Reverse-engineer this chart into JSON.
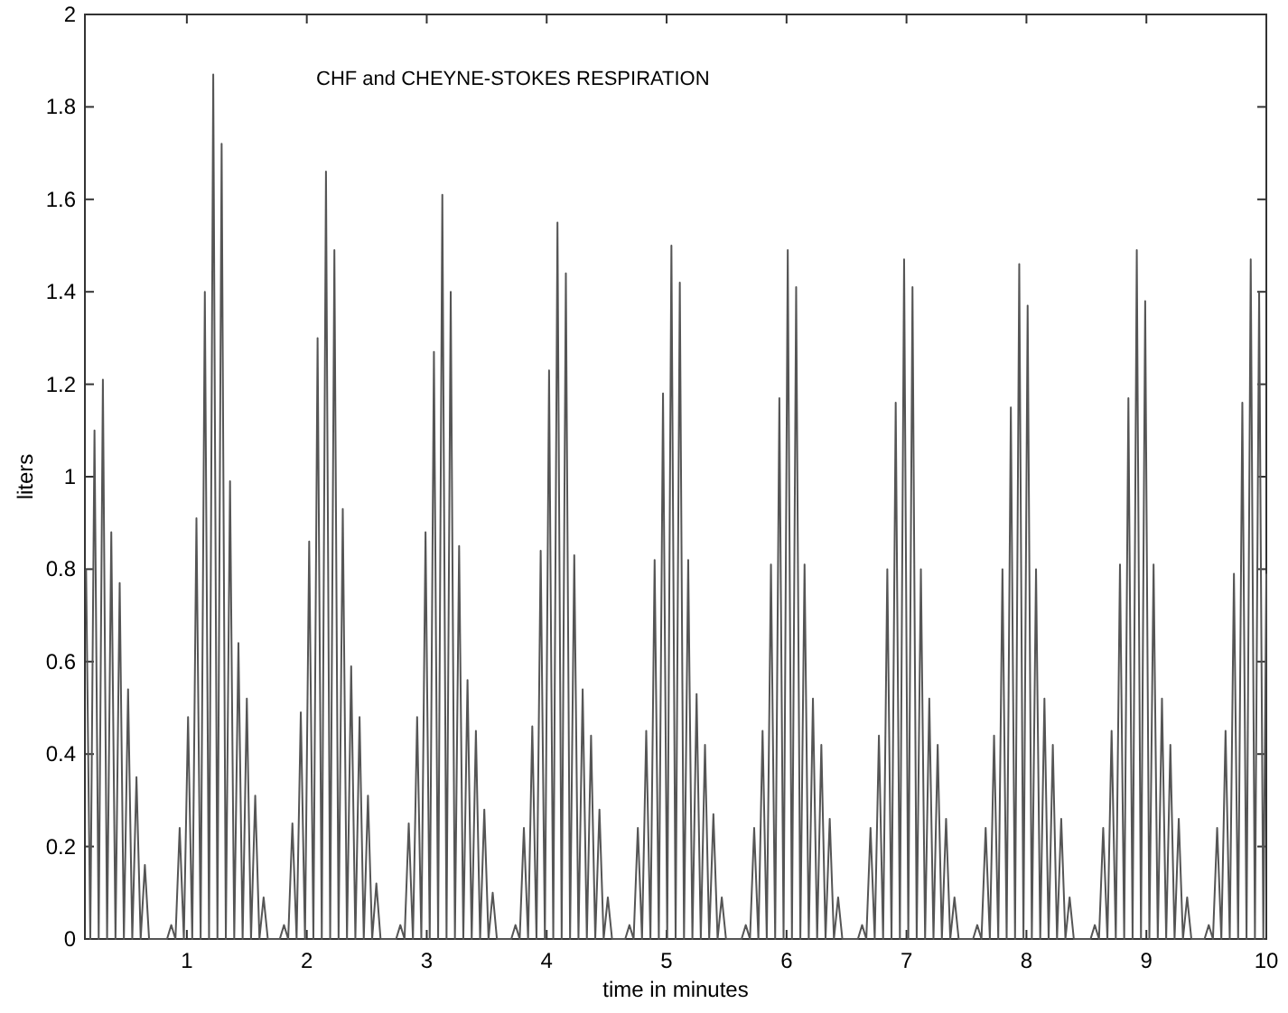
{
  "chart_data": {
    "type": "line",
    "title": "CHF and CHEYNE-STOKES RESPIRATION",
    "xlabel": "time in minutes",
    "ylabel": "liters",
    "xlim": [
      0.15,
      10
    ],
    "ylim": [
      0,
      2
    ],
    "xticks": [
      1,
      2,
      3,
      4,
      5,
      6,
      7,
      8,
      9,
      10
    ],
    "yticks": [
      0,
      0.2,
      0.4,
      0.6,
      0.8,
      1,
      1.2,
      1.4,
      1.6,
      1.8,
      2
    ],
    "grid": false,
    "line_style": "solid",
    "series": [
      {
        "color": "#555555",
        "x": [
          0.16,
          0.195,
          0.23,
          0.265,
          0.3,
          0.335,
          0.37,
          0.405,
          0.44,
          0.475,
          0.51,
          0.545,
          0.58,
          0.615,
          0.65,
          0.685,
          0.835,
          0.87,
          0.905,
          0.94,
          0.975,
          1.01,
          1.045,
          1.08,
          1.115,
          1.15,
          1.185,
          1.22,
          1.255,
          1.29,
          1.325,
          1.36,
          1.395,
          1.43,
          1.465,
          1.5,
          1.535,
          1.57,
          1.605,
          1.64,
          1.675,
          1.775,
          1.81,
          1.845,
          1.88,
          1.915,
          1.95,
          1.985,
          2.02,
          2.055,
          2.09,
          2.125,
          2.16,
          2.195,
          2.23,
          2.265,
          2.3,
          2.335,
          2.37,
          2.405,
          2.44,
          2.475,
          2.51,
          2.545,
          2.58,
          2.615,
          2.745,
          2.78,
          2.815,
          2.85,
          2.885,
          2.92,
          2.955,
          2.99,
          3.025,
          3.06,
          3.095,
          3.13,
          3.165,
          3.2,
          3.235,
          3.27,
          3.305,
          3.34,
          3.375,
          3.41,
          3.445,
          3.48,
          3.515,
          3.55,
          3.585,
          3.705,
          3.74,
          3.775,
          3.81,
          3.845,
          3.88,
          3.915,
          3.95,
          3.985,
          4.02,
          4.055,
          4.09,
          4.125,
          4.16,
          4.195,
          4.23,
          4.265,
          4.3,
          4.335,
          4.37,
          4.405,
          4.44,
          4.475,
          4.51,
          4.545,
          4.655,
          4.69,
          4.725,
          4.76,
          4.795,
          4.83,
          4.865,
          4.9,
          4.935,
          4.97,
          5.005,
          5.04,
          5.075,
          5.11,
          5.145,
          5.18,
          5.215,
          5.25,
          5.285,
          5.32,
          5.355,
          5.39,
          5.425,
          5.46,
          5.495,
          5.625,
          5.66,
          5.695,
          5.73,
          5.765,
          5.8,
          5.835,
          5.87,
          5.905,
          5.94,
          5.975,
          6.01,
          6.045,
          6.08,
          6.115,
          6.15,
          6.185,
          6.22,
          6.255,
          6.29,
          6.325,
          6.36,
          6.395,
          6.43,
          6.465,
          6.595,
          6.63,
          6.665,
          6.7,
          6.735,
          6.77,
          6.805,
          6.84,
          6.875,
          6.91,
          6.945,
          6.98,
          7.015,
          7.05,
          7.085,
          7.12,
          7.155,
          7.19,
          7.225,
          7.26,
          7.295,
          7.33,
          7.365,
          7.4,
          7.435,
          7.555,
          7.59,
          7.625,
          7.66,
          7.695,
          7.73,
          7.765,
          7.8,
          7.835,
          7.87,
          7.905,
          7.94,
          7.975,
          8.01,
          8.045,
          8.08,
          8.115,
          8.15,
          8.185,
          8.22,
          8.255,
          8.29,
          8.325,
          8.36,
          8.395,
          8.535,
          8.57,
          8.605,
          8.64,
          8.675,
          8.71,
          8.745,
          8.78,
          8.815,
          8.85,
          8.885,
          8.92,
          8.955,
          8.99,
          9.025,
          9.06,
          9.095,
          9.13,
          9.165,
          9.2,
          9.235,
          9.27,
          9.305,
          9.34,
          9.375,
          9.485,
          9.52,
          9.555,
          9.59,
          9.625,
          9.66,
          9.695,
          9.73,
          9.765,
          9.8,
          9.835,
          9.87,
          9.905,
          9.94,
          9.975,
          10
        ],
        "values": [
          0.8,
          0,
          1.1,
          0,
          1.21,
          0,
          0.88,
          0,
          0.77,
          0,
          0.54,
          0,
          0.35,
          0,
          0.16,
          0,
          0,
          0.03,
          0,
          0.24,
          0,
          0.48,
          0,
          0.91,
          0,
          1.4,
          0,
          1.87,
          0,
          1.72,
          0,
          0.99,
          0,
          0.64,
          0,
          0.52,
          0,
          0.31,
          0,
          0.09,
          0,
          0,
          0.03,
          0,
          0.25,
          0,
          0.49,
          0,
          0.86,
          0,
          1.3,
          0,
          1.66,
          0,
          1.49,
          0,
          0.93,
          0,
          0.59,
          0,
          0.48,
          0,
          0.31,
          0,
          0.12,
          0,
          0,
          0.03,
          0,
          0.25,
          0,
          0.48,
          0,
          0.88,
          0,
          1.27,
          0,
          1.61,
          0,
          1.4,
          0,
          0.85,
          0,
          0.56,
          0,
          0.45,
          0,
          0.28,
          0,
          0.1,
          0,
          0,
          0.03,
          0,
          0.24,
          0,
          0.46,
          0,
          0.84,
          0,
          1.23,
          0,
          1.55,
          0,
          1.44,
          0,
          0.83,
          0,
          0.54,
          0,
          0.44,
          0,
          0.28,
          0,
          0.09,
          0,
          0,
          0.03,
          0,
          0.24,
          0,
          0.45,
          0,
          0.82,
          0,
          1.18,
          0,
          1.5,
          0,
          1.42,
          0,
          0.82,
          0,
          0.53,
          0,
          0.42,
          0,
          0.27,
          0,
          0.09,
          0,
          0,
          0.03,
          0,
          0.24,
          0,
          0.45,
          0,
          0.81,
          0,
          1.17,
          0,
          1.49,
          0,
          1.41,
          0,
          0.81,
          0,
          0.52,
          0,
          0.42,
          0,
          0.26,
          0,
          0.09,
          0,
          0,
          0.03,
          0,
          0.24,
          0,
          0.44,
          0,
          0.8,
          0,
          1.16,
          0,
          1.47,
          0,
          1.41,
          0,
          0.8,
          0,
          0.52,
          0,
          0.42,
          0,
          0.26,
          0,
          0.09,
          0,
          0,
          0.03,
          0,
          0.24,
          0,
          0.44,
          0,
          0.8,
          0,
          1.15,
          0,
          1.46,
          0,
          1.37,
          0,
          0.8,
          0,
          0.52,
          0,
          0.42,
          0,
          0.26,
          0,
          0.09,
          0,
          0,
          0.03,
          0,
          0.24,
          0,
          0.45,
          0,
          0.81,
          0,
          1.17,
          0,
          1.49,
          0,
          1.38,
          0,
          0.81,
          0,
          0.52,
          0,
          0.42,
          0,
          0.26,
          0,
          0.09,
          0,
          0,
          0.03,
          0,
          0.24,
          0,
          0.45,
          0,
          0.79,
          0,
          1.16,
          0,
          1.47,
          0,
          1.4,
          0,
          0.79
        ]
      }
    ]
  }
}
